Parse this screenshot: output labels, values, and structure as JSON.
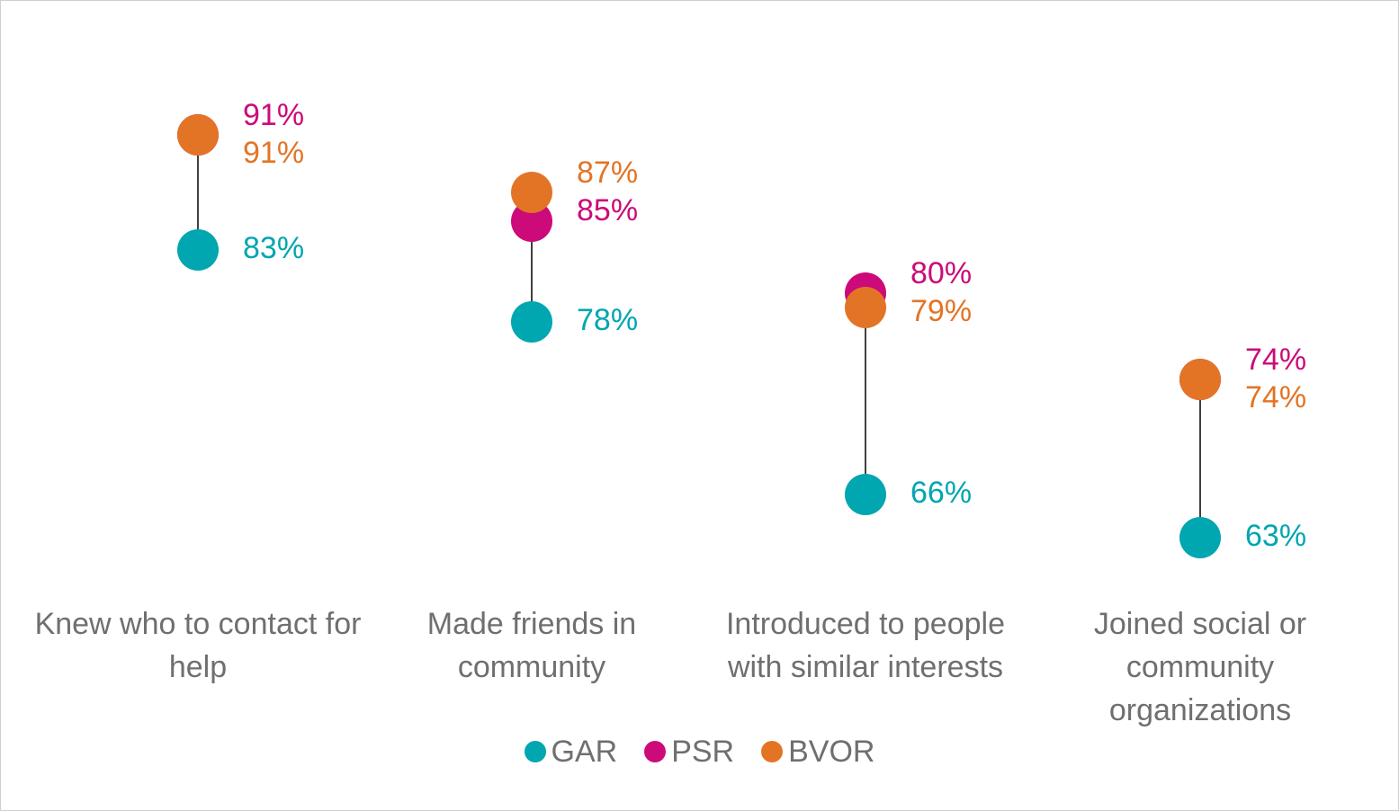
{
  "chart_data": {
    "type": "dumbbell",
    "categories": [
      "Knew who to contact for help",
      "Made friends in community",
      "Introduced to people with similar interests",
      "Joined social or community organizations"
    ],
    "series": [
      {
        "name": "GAR",
        "color": "#00a6b0",
        "values": [
          83,
          78,
          66,
          63
        ]
      },
      {
        "name": "PSR",
        "color": "#cc0a79",
        "values": [
          91,
          85,
          80,
          74
        ]
      },
      {
        "name": "BVOR",
        "color": "#e37426",
        "values": [
          91,
          87,
          79,
          74
        ]
      }
    ],
    "value_labels": [
      {
        "GAR": "83%",
        "PSR": "91%",
        "BVOR": "91%"
      },
      {
        "GAR": "78%",
        "PSR": "85%",
        "BVOR": "87%"
      },
      {
        "GAR": "66%",
        "PSR": "80%",
        "BVOR": "79%"
      },
      {
        "GAR": "63%",
        "PSR": "74%",
        "BVOR": "74%"
      }
    ],
    "connector_color": "#404040",
    "legend_position": "bottom",
    "grid": false
  }
}
